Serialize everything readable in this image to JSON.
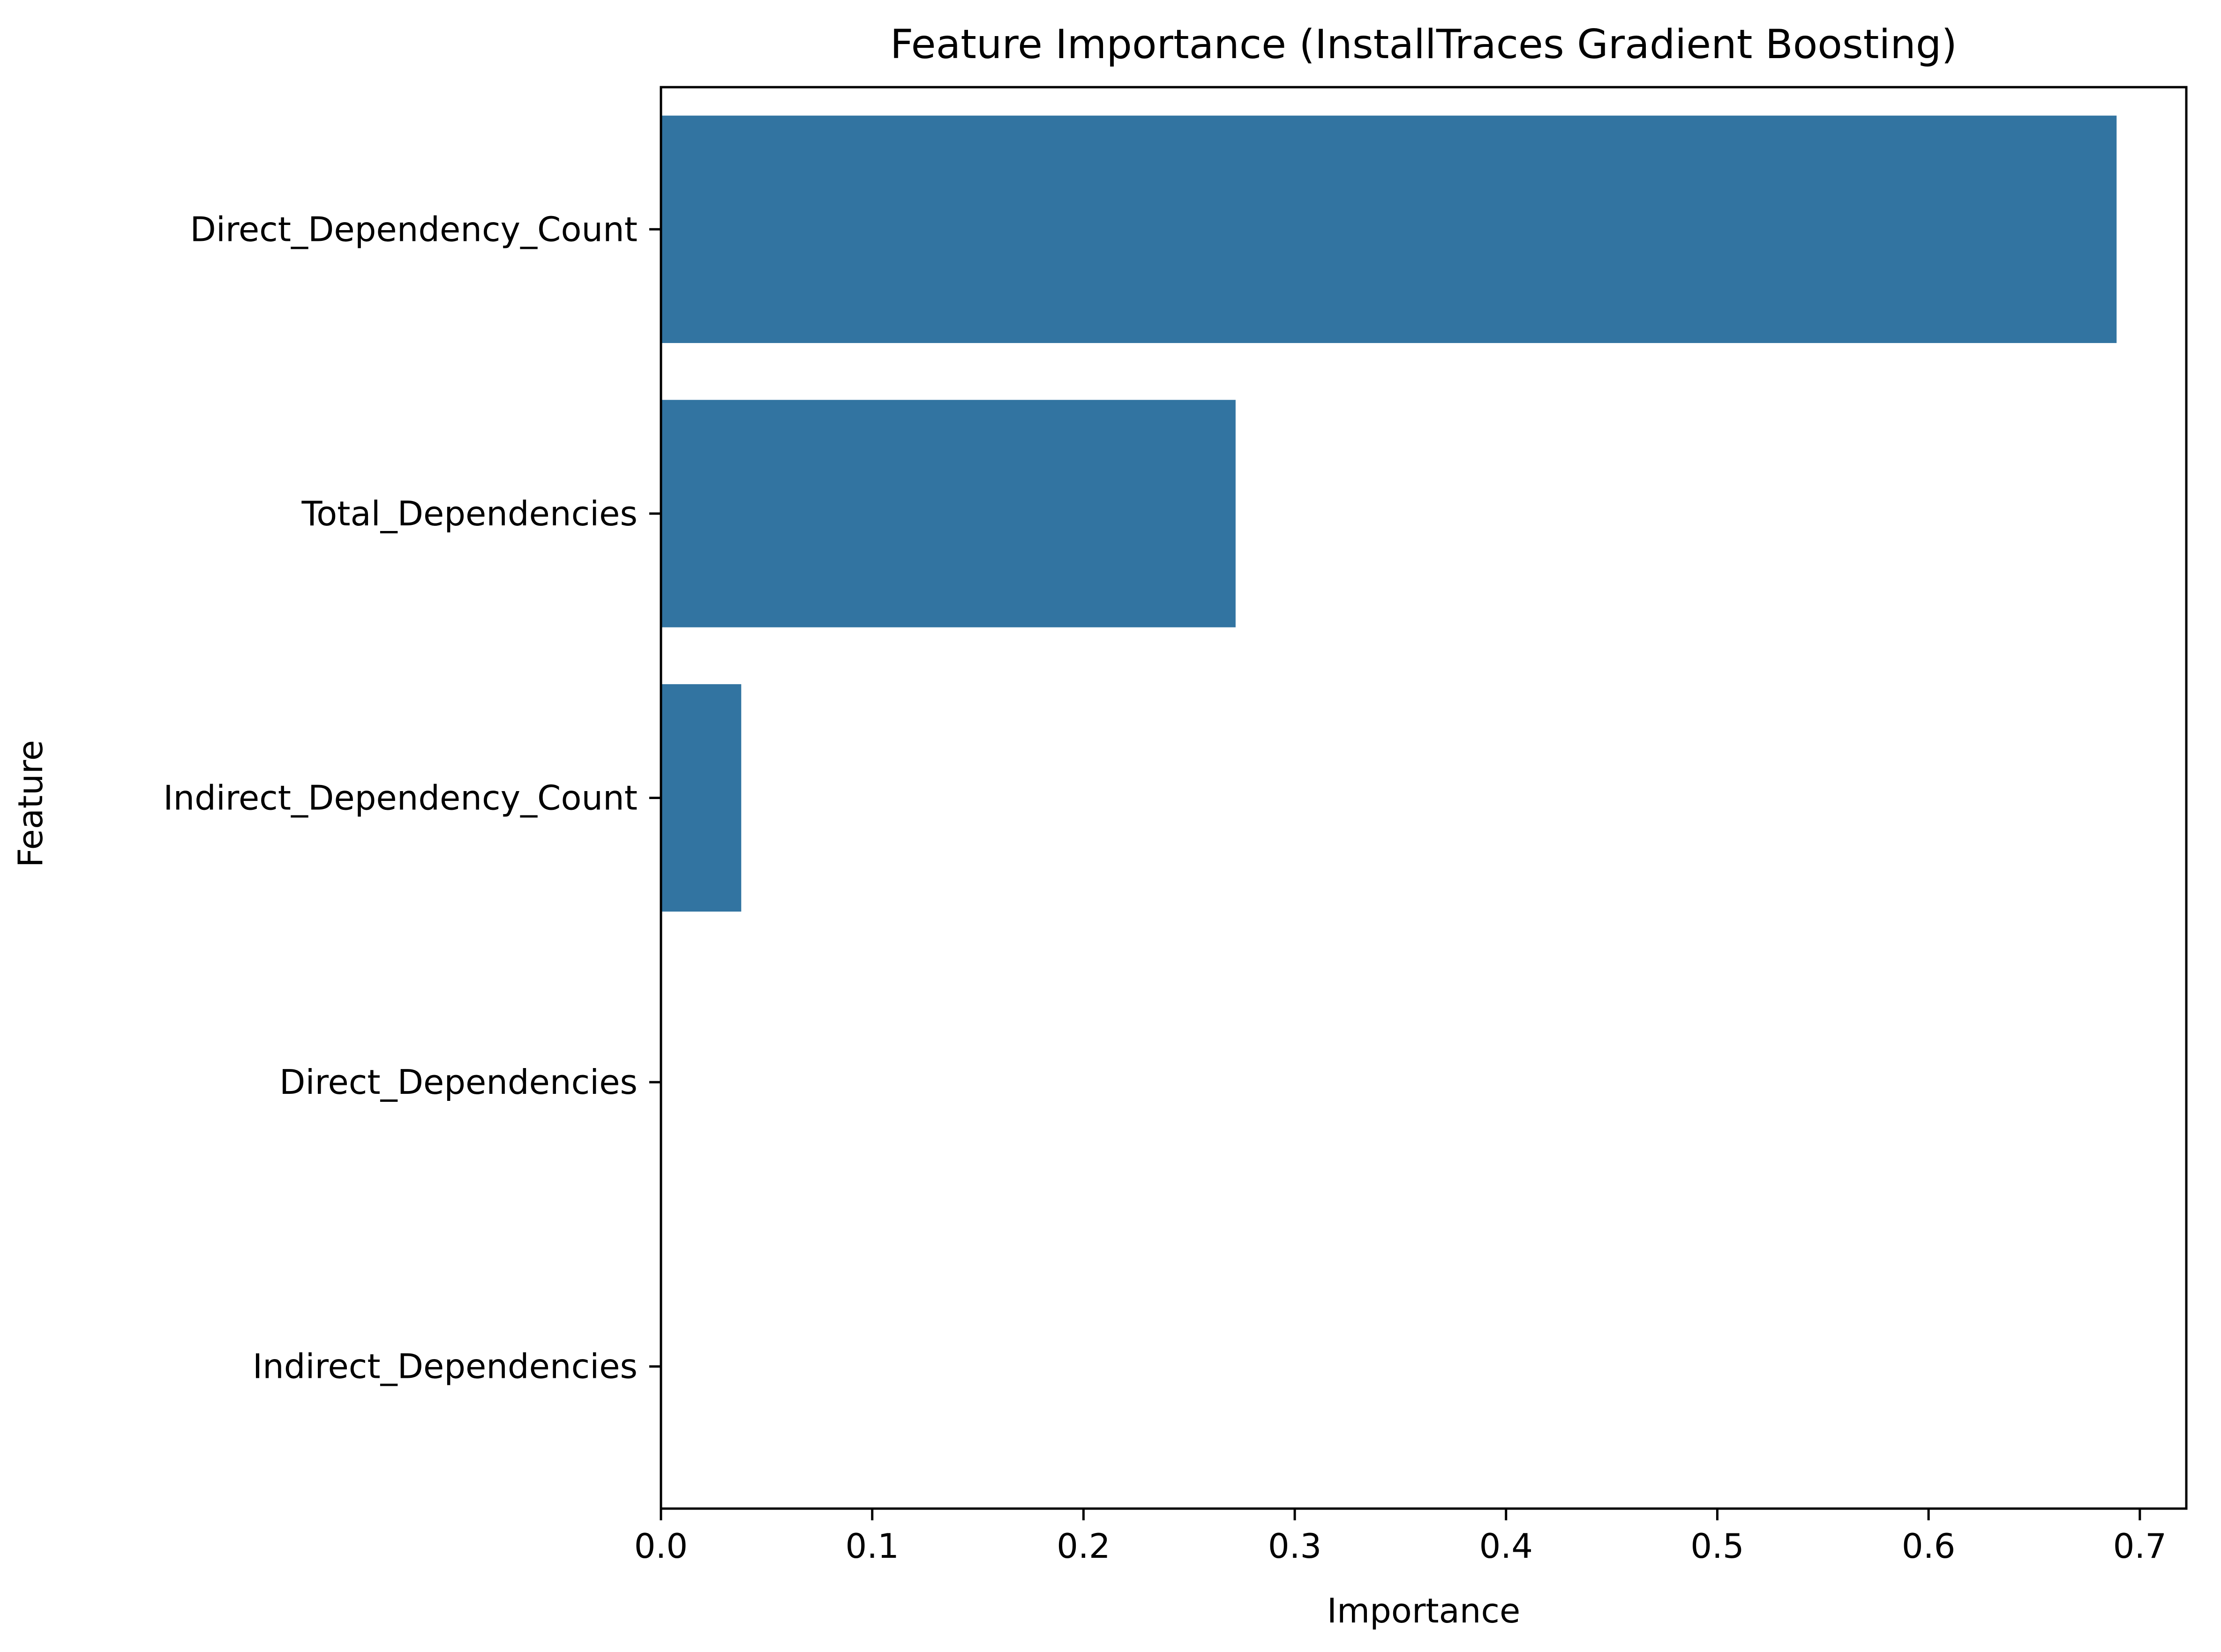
{
  "chart_data": {
    "type": "bar",
    "orientation": "horizontal",
    "title": "Feature Importance (InstallTraces Gradient Boosting)",
    "xlabel": "Importance",
    "ylabel": "Feature",
    "categories": [
      "Direct_Dependency_Count",
      "Total_Dependencies",
      "Indirect_Dependency_Count",
      "Direct_Dependencies",
      "Indirect_Dependencies"
    ],
    "values": [
      0.689,
      0.272,
      0.038,
      0.0,
      0.0
    ],
    "xlim": [
      0,
      0.722
    ],
    "xticks": [
      0.0,
      0.1,
      0.2,
      0.3,
      0.4,
      0.5,
      0.6,
      0.7
    ],
    "xtick_labels": [
      "0.0",
      "0.1",
      "0.2",
      "0.3",
      "0.4",
      "0.5",
      "0.6",
      "0.7"
    ],
    "grid": false,
    "bar_color": "#3274a1"
  }
}
